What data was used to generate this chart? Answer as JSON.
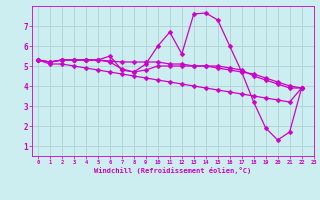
{
  "background_color": "#cceef0",
  "line_color": "#cc00cc",
  "markersize": 2.5,
  "linewidth": 0.9,
  "xlim": [
    -0.5,
    23
  ],
  "ylim": [
    0.5,
    8.0
  ],
  "xticks": [
    0,
    1,
    2,
    3,
    4,
    5,
    6,
    7,
    8,
    9,
    10,
    11,
    12,
    13,
    14,
    15,
    16,
    17,
    18,
    19,
    20,
    21,
    22,
    23
  ],
  "yticks": [
    1,
    2,
    3,
    4,
    5,
    6,
    7
  ],
  "xlabel": "Windchill (Refroidissement éolien,°C)",
  "grid_color": "#aacccc",
  "series": [
    [
      5.3,
      5.2,
      5.3,
      5.3,
      5.3,
      5.3,
      5.5,
      4.8,
      4.7,
      5.1,
      6.0,
      6.7,
      5.6,
      7.6,
      7.65,
      7.3,
      6.0,
      4.7,
      3.2,
      1.9,
      1.3,
      1.7,
      3.9
    ],
    [
      5.3,
      5.2,
      5.3,
      5.3,
      5.3,
      5.3,
      5.2,
      4.85,
      4.7,
      4.8,
      5.0,
      5.0,
      5.0,
      5.0,
      5.0,
      5.0,
      4.9,
      4.8,
      4.5,
      4.3,
      4.1,
      3.9,
      3.9
    ],
    [
      5.3,
      5.2,
      5.3,
      5.3,
      5.3,
      5.3,
      5.25,
      5.2,
      5.2,
      5.2,
      5.2,
      5.1,
      5.1,
      5.0,
      5.0,
      4.9,
      4.8,
      4.7,
      4.6,
      4.4,
      4.2,
      4.0,
      3.9
    ],
    [
      5.3,
      5.1,
      5.1,
      5.0,
      4.9,
      4.8,
      4.7,
      4.6,
      4.5,
      4.4,
      4.3,
      4.2,
      4.1,
      4.0,
      3.9,
      3.8,
      3.7,
      3.6,
      3.5,
      3.4,
      3.3,
      3.2,
      3.9
    ]
  ],
  "x": [
    0,
    1,
    2,
    3,
    4,
    5,
    6,
    7,
    8,
    9,
    10,
    11,
    12,
    13,
    14,
    15,
    16,
    17,
    18,
    19,
    20,
    21,
    22
  ]
}
